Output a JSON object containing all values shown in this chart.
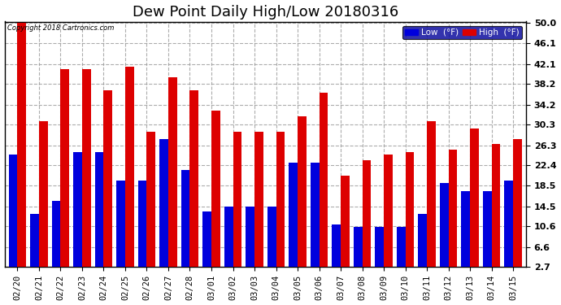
{
  "title": "Dew Point Daily High/Low 20180316",
  "copyright": "Copyright 2018 Cartronics.com",
  "dates": [
    "02/20",
    "02/21",
    "02/22",
    "02/23",
    "02/24",
    "02/25",
    "02/26",
    "02/27",
    "02/28",
    "03/01",
    "03/02",
    "03/03",
    "03/04",
    "03/05",
    "03/06",
    "03/07",
    "03/08",
    "03/09",
    "03/10",
    "03/11",
    "03/12",
    "03/13",
    "03/14",
    "03/15"
  ],
  "high": [
    50.0,
    31.0,
    41.0,
    41.0,
    37.0,
    41.5,
    29.0,
    39.5,
    37.0,
    33.0,
    29.0,
    29.0,
    29.0,
    32.0,
    36.5,
    20.5,
    23.5,
    24.5,
    25.0,
    31.0,
    25.5,
    29.5,
    26.5,
    27.5
  ],
  "low": [
    24.5,
    13.0,
    15.5,
    25.0,
    25.0,
    19.5,
    19.5,
    27.5,
    21.5,
    13.5,
    14.5,
    14.5,
    14.5,
    23.0,
    23.0,
    11.0,
    10.5,
    10.5,
    10.5,
    13.0,
    19.0,
    17.5,
    17.5,
    19.5
  ],
  "yticks": [
    2.7,
    6.6,
    10.6,
    14.5,
    18.5,
    22.4,
    26.3,
    30.3,
    34.2,
    38.2,
    42.1,
    46.1,
    50.0
  ],
  "ymin": 2.7,
  "ymax": 50.0,
  "bar_width": 0.4,
  "low_color": "#0000dd",
  "high_color": "#dd0000",
  "bg_color": "#ffffff",
  "grid_color": "#999999",
  "title_fontsize": 13,
  "legend_low_label": "Low  (°F)",
  "legend_high_label": "High  (°F)",
  "legend_bg": "#000099"
}
